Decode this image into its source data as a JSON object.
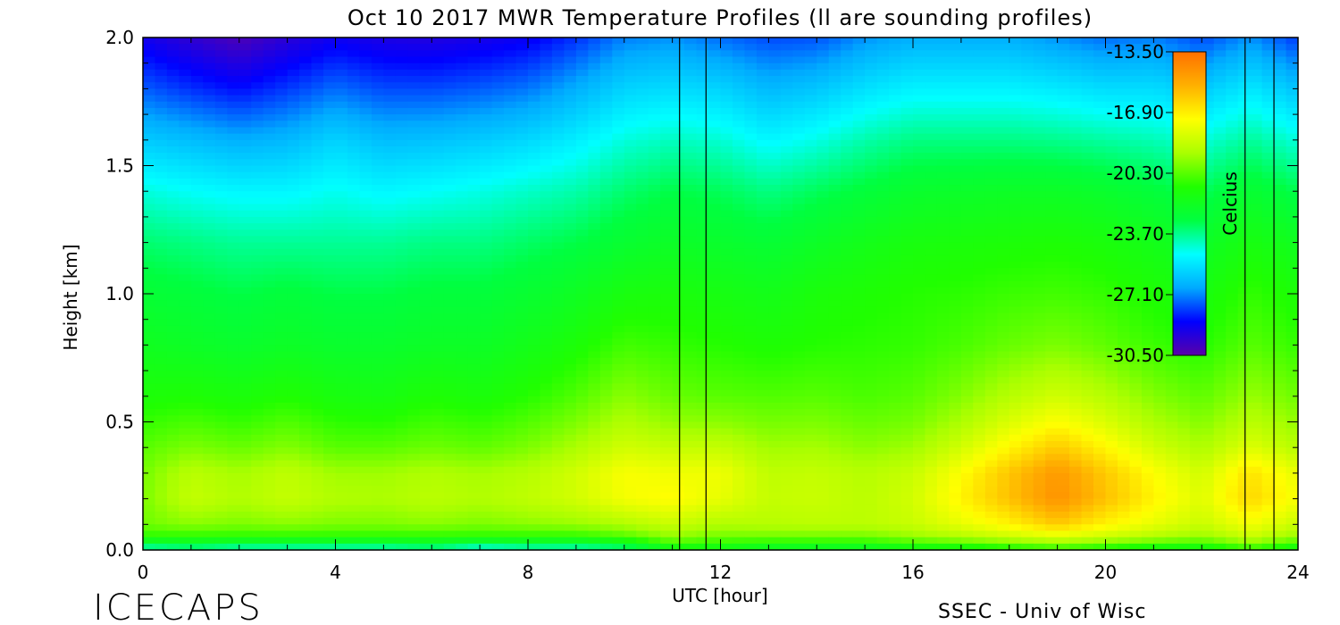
{
  "chart_data": {
    "type": "heatmap",
    "title": "Oct 10 2017 MWR Temperature Profiles (ll are sounding profiles)",
    "xlabel": "UTC [hour]",
    "ylabel": "Height [km]",
    "xlim": [
      0,
      24
    ],
    "ylim": [
      0,
      2.0
    ],
    "x_ticks": [
      "0",
      "4",
      "8",
      "12",
      "16",
      "20",
      "24"
    ],
    "y_ticks": [
      "0.0",
      "0.5",
      "1.0",
      "1.5",
      "2.0"
    ],
    "colorbar": {
      "label": "Celcius",
      "range": [
        -30.5,
        -13.5
      ],
      "ticks": [
        "-13.50",
        "-16.90",
        "-20.30",
        "-23.70",
        "-27.10",
        "-30.50"
      ],
      "colors": [
        "#5a00a8",
        "#0000ff",
        "#00aaff",
        "#00ffff",
        "#00ff40",
        "#20ff00",
        "#aaff00",
        "#ffff00",
        "#ffb000",
        "#ff7000"
      ]
    },
    "sounding_profiles_utc": [
      11.15,
      11.7,
      22.9,
      23.5
    ],
    "temperature_celsius": {
      "x": [
        0,
        1,
        2,
        3,
        4,
        5,
        6,
        7,
        8,
        9,
        10,
        11,
        12,
        13,
        14,
        15,
        16,
        17,
        18,
        19,
        20,
        21,
        22,
        23,
        24
      ],
      "y": [
        0.0,
        0.05,
        0.1,
        0.2,
        0.3,
        0.4,
        0.5,
        0.6,
        0.8,
        1.0,
        1.2,
        1.4,
        1.6,
        1.8,
        2.0
      ],
      "values": [
        [
          -24.5,
          -24.0,
          -24.5,
          -24.5,
          -24.5,
          -24.5,
          -24.0,
          -25.0,
          -24.5,
          -24.5,
          -24.0,
          -22.0,
          -22.0,
          -22.5,
          -22.5,
          -22.5,
          -22.0,
          -22.0,
          -21.5,
          -21.0,
          -21.5,
          -22.0,
          -22.0,
          -21.0,
          -22.0
        ],
        [
          -21.0,
          -21.0,
          -21.0,
          -21.0,
          -21.0,
          -21.0,
          -21.0,
          -21.0,
          -21.0,
          -21.0,
          -20.5,
          -19.5,
          -20.0,
          -20.0,
          -20.0,
          -20.0,
          -19.5,
          -19.0,
          -18.5,
          -18.0,
          -18.5,
          -19.0,
          -19.5,
          -18.5,
          -19.5
        ],
        [
          -20.0,
          -19.6,
          -19.8,
          -19.6,
          -19.8,
          -19.8,
          -19.6,
          -19.8,
          -19.6,
          -19.4,
          -19.0,
          -18.5,
          -19.0,
          -18.9,
          -18.8,
          -18.8,
          -18.5,
          -17.8,
          -17.0,
          -16.0,
          -17.0,
          -17.8,
          -18.5,
          -17.5,
          -18.5
        ],
        [
          -19.8,
          -18.6,
          -19.0,
          -18.6,
          -19.0,
          -19.1,
          -18.8,
          -19.0,
          -18.7,
          -18.3,
          -17.5,
          -17.2,
          -17.8,
          -18.6,
          -18.5,
          -18.8,
          -18.3,
          -17.0,
          -15.8,
          -14.5,
          -15.8,
          -17.0,
          -18.0,
          -16.3,
          -17.5
        ],
        [
          -19.9,
          -18.8,
          -19.2,
          -18.7,
          -19.3,
          -19.3,
          -19.0,
          -19.2,
          -18.9,
          -18.3,
          -17.4,
          -17.6,
          -17.6,
          -18.7,
          -18.6,
          -18.9,
          -18.5,
          -17.3,
          -15.9,
          -14.7,
          -16.0,
          -17.3,
          -18.3,
          -16.6,
          -17.8
        ],
        [
          -20.3,
          -19.8,
          -20.1,
          -19.7,
          -20.3,
          -20.3,
          -20.0,
          -20.2,
          -19.8,
          -19.1,
          -18.3,
          -18.6,
          -18.6,
          -19.3,
          -19.2,
          -19.6,
          -19.3,
          -18.3,
          -17.1,
          -16.0,
          -17.1,
          -18.3,
          -19.1,
          -18.0,
          -18.9
        ],
        [
          -20.8,
          -20.5,
          -20.8,
          -20.4,
          -20.9,
          -21.0,
          -20.6,
          -20.8,
          -20.4,
          -19.8,
          -19.0,
          -19.5,
          -19.6,
          -19.9,
          -19.8,
          -20.1,
          -19.9,
          -19.1,
          -18.1,
          -17.3,
          -18.1,
          -19.1,
          -19.7,
          -18.8,
          -19.5
        ],
        [
          -21.3,
          -21.2,
          -21.4,
          -21.1,
          -21.5,
          -21.6,
          -21.2,
          -21.4,
          -21.0,
          -20.4,
          -19.6,
          -20.1,
          -20.3,
          -20.4,
          -20.3,
          -20.5,
          -20.3,
          -19.7,
          -18.9,
          -18.3,
          -18.9,
          -19.7,
          -20.2,
          -19.4,
          -20.0
        ],
        [
          -22.0,
          -22.2,
          -22.4,
          -22.2,
          -22.4,
          -22.4,
          -22.2,
          -22.2,
          -21.8,
          -21.3,
          -20.6,
          -20.8,
          -21.0,
          -21.2,
          -21.0,
          -20.9,
          -20.8,
          -20.5,
          -20.1,
          -19.8,
          -20.2,
          -20.7,
          -21.0,
          -20.3,
          -20.8
        ],
        [
          -22.6,
          -22.8,
          -23.0,
          -22.8,
          -23.0,
          -23.0,
          -22.8,
          -22.8,
          -22.5,
          -22.1,
          -21.5,
          -21.4,
          -21.6,
          -21.8,
          -21.4,
          -21.2,
          -21.0,
          -20.9,
          -20.7,
          -20.6,
          -20.8,
          -21.2,
          -21.5,
          -20.8,
          -21.3
        ],
        [
          -23.4,
          -23.6,
          -23.8,
          -23.8,
          -23.8,
          -23.8,
          -23.6,
          -23.6,
          -23.3,
          -23.0,
          -22.5,
          -22.2,
          -22.4,
          -22.6,
          -22.2,
          -21.8,
          -21.5,
          -21.4,
          -21.3,
          -21.2,
          -21.4,
          -21.8,
          -22.2,
          -21.5,
          -22.0
        ],
        [
          -24.5,
          -24.8,
          -25.0,
          -25.0,
          -24.7,
          -25.0,
          -24.8,
          -24.6,
          -24.3,
          -24.0,
          -23.4,
          -23.0,
          -23.2,
          -23.6,
          -23.2,
          -22.8,
          -22.4,
          -22.3,
          -22.2,
          -22.2,
          -22.4,
          -22.8,
          -23.2,
          -22.5,
          -23.1
        ],
        [
          -26.0,
          -26.3,
          -26.6,
          -26.4,
          -25.8,
          -26.3,
          -26.2,
          -26.0,
          -25.7,
          -25.2,
          -24.5,
          -24.2,
          -24.4,
          -25.0,
          -24.6,
          -24.0,
          -23.6,
          -23.6,
          -23.6,
          -23.7,
          -23.9,
          -24.1,
          -24.5,
          -23.8,
          -24.5
        ],
        [
          -27.6,
          -28.1,
          -28.5,
          -28.0,
          -27.4,
          -27.8,
          -27.8,
          -27.6,
          -27.3,
          -26.6,
          -25.8,
          -25.6,
          -25.8,
          -26.4,
          -26.1,
          -25.5,
          -25.1,
          -25.1,
          -25.1,
          -25.3,
          -25.6,
          -25.6,
          -26.0,
          -25.3,
          -26.2
        ],
        [
          -29.0,
          -29.6,
          -30.2,
          -29.5,
          -28.9,
          -29.2,
          -29.3,
          -29.1,
          -28.8,
          -28.1,
          -27.2,
          -27.0,
          -27.4,
          -27.8,
          -27.7,
          -27.0,
          -26.6,
          -26.6,
          -26.6,
          -27.0,
          -27.4,
          -27.2,
          -27.8,
          -27.0,
          -28.0
        ]
      ]
    }
  },
  "branding": {
    "project": "ICECAPS",
    "credit": "SSEC - Univ of Wisc"
  }
}
